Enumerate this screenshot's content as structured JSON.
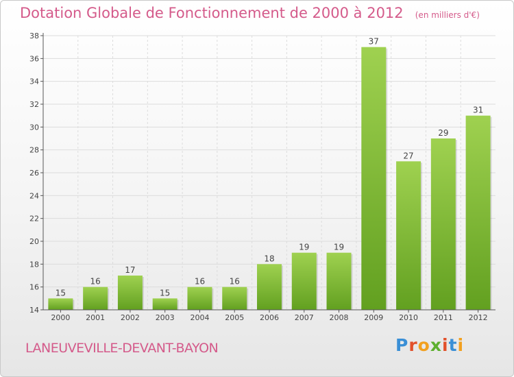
{
  "title": "Dotation Globale de Fonctionnement de 2000 à 2012",
  "subtitle": "(en milliers d'€)",
  "commune": "LANEUVEVILLE-DEVANT-BAYON",
  "logo": {
    "text": "Proxiti",
    "letters": [
      {
        "ch": "P",
        "color": "#3a8fd6"
      },
      {
        "ch": "r",
        "color": "#e2512b"
      },
      {
        "ch": "o",
        "color": "#f2a01f"
      },
      {
        "ch": "x",
        "color": "#5caf2e"
      },
      {
        "ch": "i",
        "color": "#e2512b"
      },
      {
        "ch": "t",
        "color": "#3a8fd6"
      },
      {
        "ch": "i",
        "color": "#f2a01f"
      }
    ]
  },
  "colors": {
    "bar_top": "#9fd150",
    "bar_bottom": "#62a020",
    "axis": "#555555",
    "grid": "#dcdcdc",
    "accent": "#d45a8a"
  },
  "chart_data": {
    "type": "bar",
    "categories": [
      "2000",
      "2001",
      "2002",
      "2003",
      "2004",
      "2005",
      "2006",
      "2007",
      "2008",
      "2009",
      "2010",
      "2011",
      "2012"
    ],
    "values": [
      15,
      16,
      17,
      15,
      16,
      16,
      18,
      19,
      19,
      37,
      27,
      29,
      31
    ],
    "ylim": [
      14,
      38
    ],
    "yticks": [
      14,
      16,
      18,
      20,
      22,
      24,
      26,
      28,
      30,
      32,
      34,
      36,
      38
    ],
    "grid": true,
    "data_labels": true
  }
}
